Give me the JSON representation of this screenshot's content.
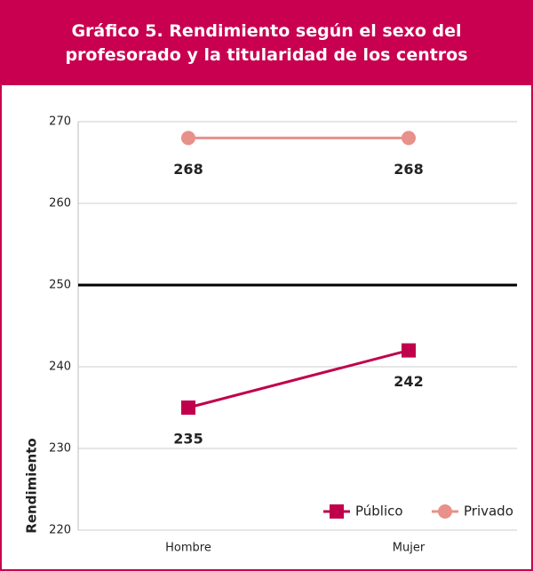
{
  "chart_data": {
    "type": "line",
    "title": "Gráfico 5. Rendimiento según el sexo del profesorado y la titularidad de los centros",
    "y_label": "Rendimiento",
    "categories": [
      "Hombre",
      "Mujer"
    ],
    "series": [
      {
        "name": "Público",
        "color": "#c0004b",
        "marker": "square",
        "values": [
          235,
          242
        ]
      },
      {
        "name": "Privado",
        "color": "#e8908a",
        "marker": "circle",
        "values": [
          268,
          268
        ]
      }
    ],
    "reference_line": 250,
    "ylim": [
      220,
      270
    ],
    "yticks": [
      220,
      230,
      240,
      250,
      260,
      270
    ],
    "grid": true,
    "legend": "lower right"
  }
}
